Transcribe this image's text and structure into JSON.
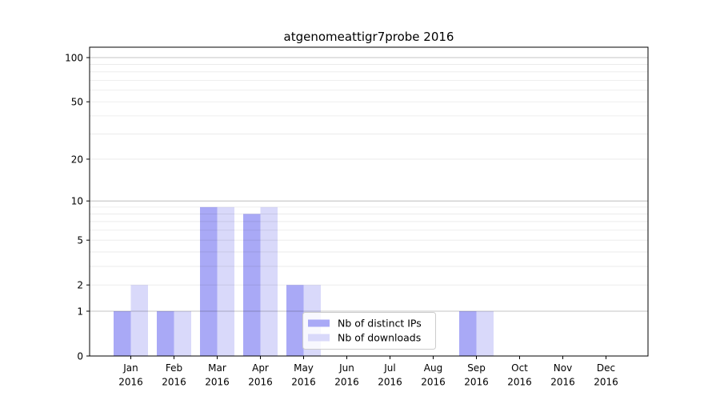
{
  "figure": {
    "background": "#ffffff",
    "text_color": "#000000"
  },
  "chart_data": {
    "type": "bar",
    "title": "atgenomeattigr7probe 2016",
    "categories": [
      "Jan 2016",
      "Feb 2016",
      "Mar 2016",
      "Apr 2016",
      "May 2016",
      "Jun 2016",
      "Jul 2016",
      "Aug 2016",
      "Sep 2016",
      "Oct 2016",
      "Nov 2016",
      "Dec 2016"
    ],
    "series": [
      {
        "name": "Nb of distinct IPs",
        "color": "#a9a9f6",
        "values": [
          1,
          1,
          9,
          8,
          2,
          0,
          0,
          0,
          1,
          0,
          0,
          0
        ]
      },
      {
        "name": "Nb of downloads",
        "color": "#d9d9fa",
        "values": [
          2,
          1,
          9,
          9,
          2,
          0,
          0,
          0,
          1,
          0,
          0,
          0
        ]
      }
    ],
    "xlabel": "",
    "ylabel": "",
    "yscale": "log1p",
    "ylim": [
      0,
      117
    ],
    "ytick_labels": [
      0,
      1,
      2,
      5,
      10,
      20,
      50,
      100
    ],
    "major_gridlines": [
      1,
      10,
      100
    ],
    "minor_gridlines": [
      2,
      3,
      4,
      5,
      6,
      7,
      8,
      9,
      20,
      30,
      40,
      50,
      60,
      70,
      80,
      90
    ],
    "grid": true,
    "legend_position": "lower-center"
  }
}
